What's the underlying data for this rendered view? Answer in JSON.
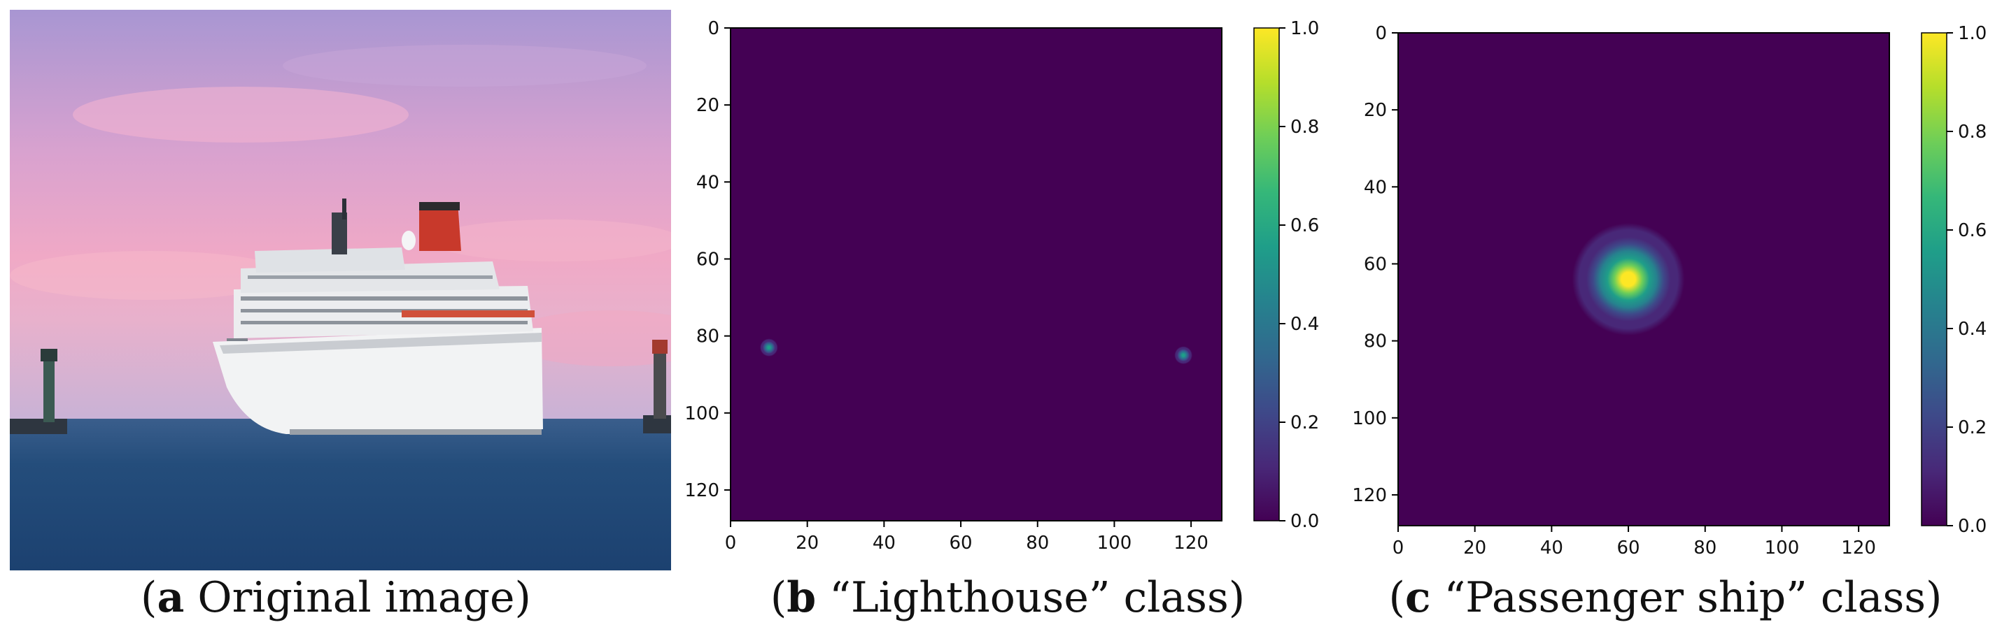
{
  "captions": [
    {
      "letter": "a",
      "text": " Original image"
    },
    {
      "letter": "b",
      "text": " “Lighthouse” class"
    },
    {
      "letter": "c",
      "text": " “Passenger ship” class"
    }
  ],
  "photo": {
    "description_icon": "ship-photo",
    "colors": {
      "sky_top": "#a493cf",
      "sky_mid": "#e7a3c6",
      "sky_low": "#f3b4c4",
      "sea": "#1f4a78",
      "ship_hull": "#f2f3f4",
      "funnel": "#c83a2a"
    }
  },
  "colors": {
    "viridis": [
      "#440154",
      "#482878",
      "#3e4989",
      "#31688e",
      "#26828e",
      "#1f9e89",
      "#35b779",
      "#6ece58",
      "#b5de2b",
      "#fde725"
    ],
    "background": "#440154"
  },
  "chart_data": [
    {
      "type": "heatmap",
      "title": "",
      "xlabel": "",
      "ylabel": "",
      "grid_size": 128,
      "xlim": [
        0,
        128
      ],
      "ylim": [
        128,
        0
      ],
      "xticks": [
        0,
        20,
        40,
        60,
        80,
        100,
        120
      ],
      "yticks": [
        0,
        20,
        40,
        60,
        80,
        100,
        120
      ],
      "colorbar": {
        "min": 0.0,
        "max": 1.0,
        "ticks": [
          "0.0",
          "0.2",
          "0.4",
          "0.6",
          "0.8",
          "1.0"
        ]
      },
      "peaks": [
        {
          "x": 10,
          "y": 83,
          "value": 0.6,
          "sigma": 1.0
        },
        {
          "x": 118,
          "y": 85,
          "value": 0.6,
          "sigma": 1.0
        }
      ]
    },
    {
      "type": "heatmap",
      "title": "",
      "xlabel": "",
      "ylabel": "",
      "grid_size": 128,
      "xlim": [
        0,
        128
      ],
      "ylim": [
        128,
        0
      ],
      "xticks": [
        0,
        20,
        40,
        60,
        80,
        100,
        120
      ],
      "yticks": [
        0,
        20,
        40,
        60,
        80,
        100,
        120
      ],
      "colorbar": {
        "min": 0.0,
        "max": 1.0,
        "ticks": [
          "0.0",
          "0.2",
          "0.4",
          "0.6",
          "0.8",
          "1.0"
        ]
      },
      "peaks": [
        {
          "x": 60,
          "y": 64,
          "value": 1.0,
          "sigma": 5.5
        }
      ]
    }
  ]
}
